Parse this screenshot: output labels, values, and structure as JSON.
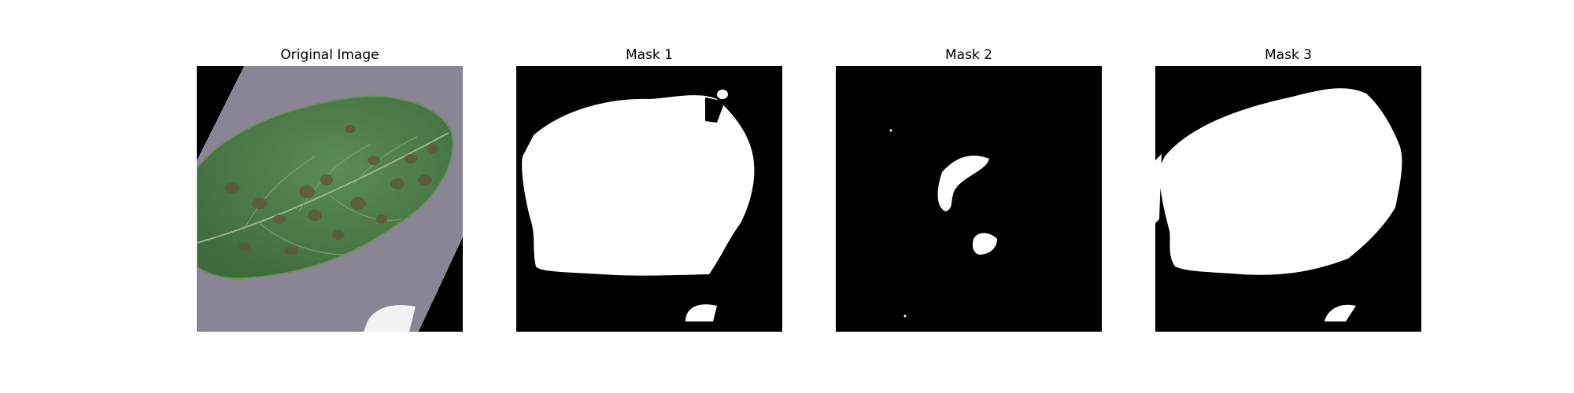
{
  "panels": [
    {
      "title": "Original Image",
      "kind": "leaf-photo"
    },
    {
      "title": "Mask 1",
      "kind": "binary-mask"
    },
    {
      "title": "Mask 2",
      "kind": "binary-mask"
    },
    {
      "title": "Mask 3",
      "kind": "binary-mask"
    }
  ],
  "colors": {
    "mask_foreground": "#ffffff",
    "mask_background": "#000000",
    "leaf": "#4a7a45",
    "photo_background": "#8a8594",
    "lesion": "#5e5a3a"
  }
}
